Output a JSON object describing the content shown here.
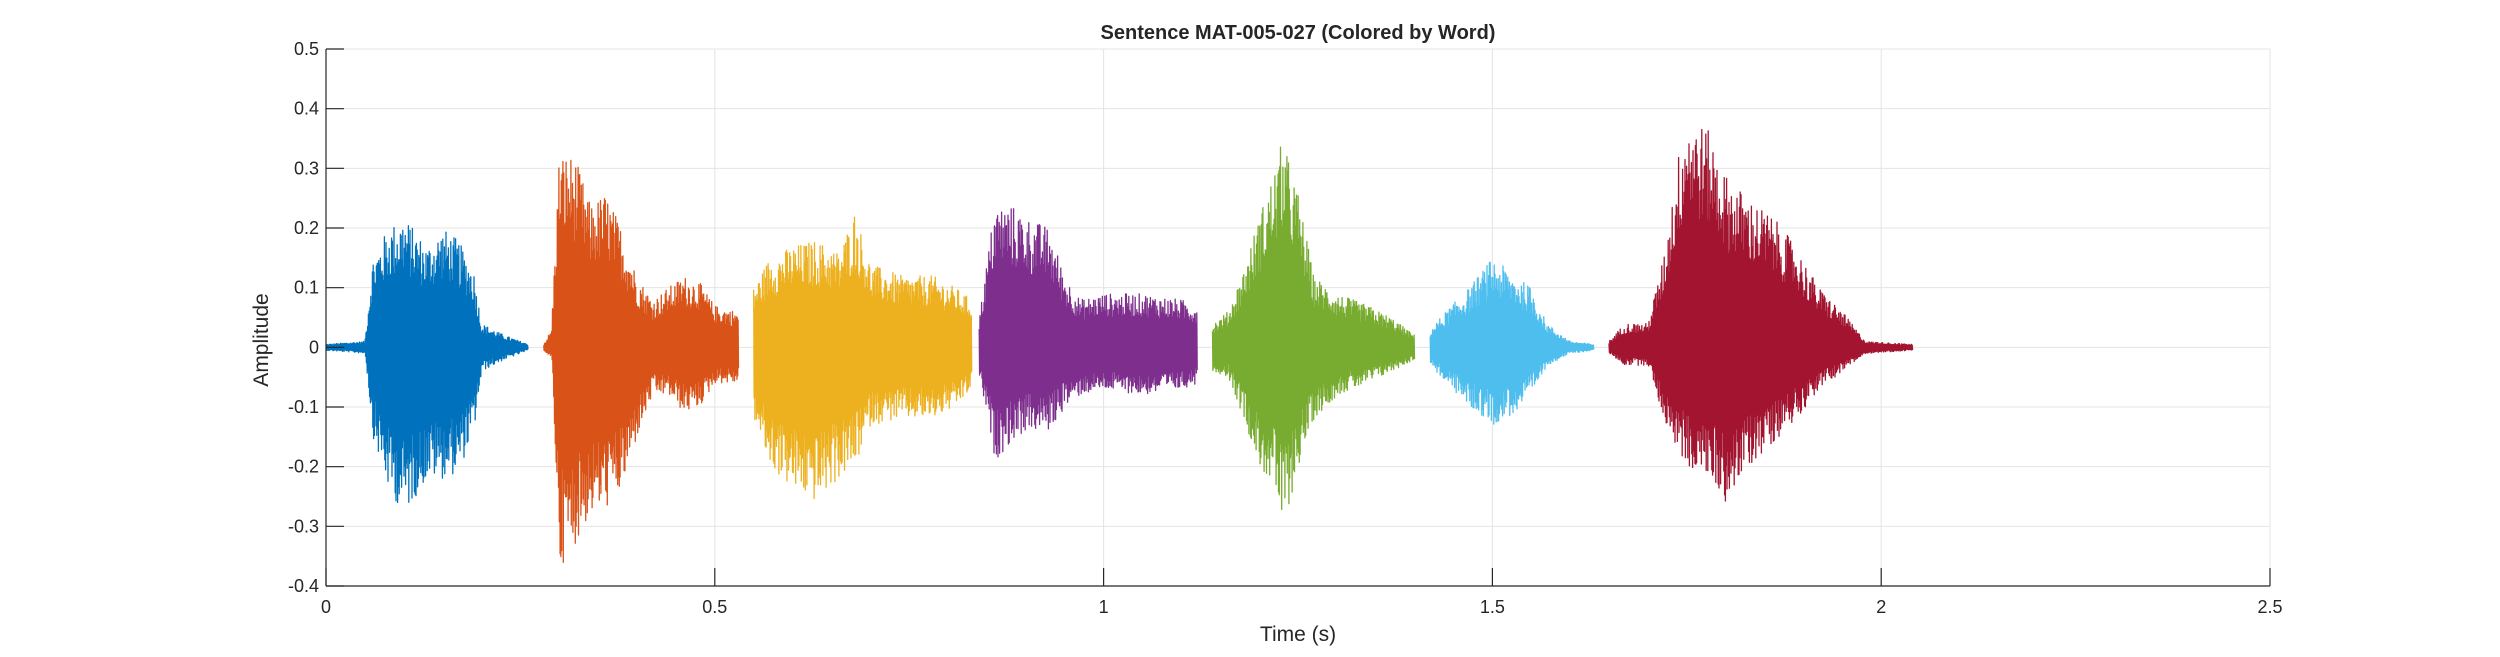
{
  "chart_data": {
    "type": "line",
    "title": "Sentence MAT-005-027 (Colored by Word)",
    "xlabel": "Time (s)",
    "ylabel": "Amplitude",
    "xlim": [
      0,
      2.5
    ],
    "ylim": [
      -0.4,
      0.5
    ],
    "xticks": [
      0,
      0.5,
      1,
      1.5,
      2,
      2.5
    ],
    "xtick_labels": [
      "0",
      "0.5",
      "1",
      "1.5",
      "2",
      "2.5"
    ],
    "yticks": [
      -0.4,
      -0.3,
      -0.2,
      -0.1,
      0,
      0.1,
      0.2,
      0.3,
      0.4,
      0.5
    ],
    "ytick_labels": [
      "-0.4",
      "-0.3",
      "-0.2",
      "-0.1",
      "0",
      "0.1",
      "0.2",
      "0.3",
      "0.4",
      "0.5"
    ],
    "grid": true,
    "series": [
      {
        "color": "#0072BD",
        "start": 0.0,
        "end": 0.26,
        "envelope": [
          {
            "t": 0.0,
            "max": 0.005,
            "min": -0.005
          },
          {
            "t": 0.05,
            "max": 0.01,
            "min": -0.01
          },
          {
            "t": 0.06,
            "max": 0.15,
            "min": -0.15
          },
          {
            "t": 0.08,
            "max": 0.2,
            "min": -0.24
          },
          {
            "t": 0.1,
            "max": 0.22,
            "min": -0.28
          },
          {
            "t": 0.13,
            "max": 0.17,
            "min": -0.22
          },
          {
            "t": 0.15,
            "max": 0.2,
            "min": -0.22
          },
          {
            "t": 0.17,
            "max": 0.18,
            "min": -0.21
          },
          {
            "t": 0.19,
            "max": 0.13,
            "min": -0.14
          },
          {
            "t": 0.2,
            "max": 0.04,
            "min": -0.04
          },
          {
            "t": 0.23,
            "max": 0.02,
            "min": -0.02
          },
          {
            "t": 0.26,
            "max": 0.005,
            "min": -0.005
          }
        ]
      },
      {
        "color": "#D95319",
        "start": 0.28,
        "end": 0.53,
        "envelope": [
          {
            "t": 0.28,
            "max": 0.005,
            "min": -0.005
          },
          {
            "t": 0.29,
            "max": 0.03,
            "min": -0.02
          },
          {
            "t": 0.3,
            "max": 0.33,
            "min": -0.37
          },
          {
            "t": 0.32,
            "max": 0.32,
            "min": -0.33
          },
          {
            "t": 0.34,
            "max": 0.24,
            "min": -0.28
          },
          {
            "t": 0.36,
            "max": 0.26,
            "min": -0.27
          },
          {
            "t": 0.38,
            "max": 0.2,
            "min": -0.24
          },
          {
            "t": 0.4,
            "max": 0.12,
            "min": -0.15
          },
          {
            "t": 0.42,
            "max": 0.08,
            "min": -0.08
          },
          {
            "t": 0.44,
            "max": 0.1,
            "min": -0.08
          },
          {
            "t": 0.46,
            "max": 0.12,
            "min": -0.11
          },
          {
            "t": 0.48,
            "max": 0.11,
            "min": -0.1
          },
          {
            "t": 0.5,
            "max": 0.07,
            "min": -0.06
          },
          {
            "t": 0.53,
            "max": 0.06,
            "min": -0.06
          }
        ]
      },
      {
        "color": "#EDB120",
        "start": 0.55,
        "end": 0.83,
        "envelope": [
          {
            "t": 0.55,
            "max": 0.1,
            "min": -0.12
          },
          {
            "t": 0.57,
            "max": 0.15,
            "min": -0.2
          },
          {
            "t": 0.6,
            "max": 0.17,
            "min": -0.24
          },
          {
            "t": 0.63,
            "max": 0.18,
            "min": -0.26
          },
          {
            "t": 0.66,
            "max": 0.16,
            "min": -0.22
          },
          {
            "t": 0.68,
            "max": 0.23,
            "min": -0.2
          },
          {
            "t": 0.7,
            "max": 0.14,
            "min": -0.13
          },
          {
            "t": 0.74,
            "max": 0.12,
            "min": -0.12
          },
          {
            "t": 0.78,
            "max": 0.12,
            "min": -0.12
          },
          {
            "t": 0.81,
            "max": 0.1,
            "min": -0.1
          },
          {
            "t": 0.83,
            "max": 0.08,
            "min": -0.07
          }
        ]
      },
      {
        "color": "#7E2F8E",
        "start": 0.84,
        "end": 1.12,
        "envelope": [
          {
            "t": 0.84,
            "max": 0.05,
            "min": -0.05
          },
          {
            "t": 0.86,
            "max": 0.24,
            "min": -0.19
          },
          {
            "t": 0.88,
            "max": 0.24,
            "min": -0.16
          },
          {
            "t": 0.9,
            "max": 0.22,
            "min": -0.14
          },
          {
            "t": 0.93,
            "max": 0.2,
            "min": -0.14
          },
          {
            "t": 0.95,
            "max": 0.12,
            "min": -0.1
          },
          {
            "t": 0.97,
            "max": 0.08,
            "min": -0.08
          },
          {
            "t": 1.0,
            "max": 0.09,
            "min": -0.07
          },
          {
            "t": 1.05,
            "max": 0.09,
            "min": -0.08
          },
          {
            "t": 1.1,
            "max": 0.08,
            "min": -0.07
          },
          {
            "t": 1.12,
            "max": 0.07,
            "min": -0.06
          }
        ]
      },
      {
        "color": "#77AC30",
        "start": 1.14,
        "end": 1.4,
        "envelope": [
          {
            "t": 1.14,
            "max": 0.04,
            "min": -0.04
          },
          {
            "t": 1.16,
            "max": 0.06,
            "min": -0.05
          },
          {
            "t": 1.18,
            "max": 0.13,
            "min": -0.12
          },
          {
            "t": 1.2,
            "max": 0.22,
            "min": -0.2
          },
          {
            "t": 1.22,
            "max": 0.3,
            "min": -0.24
          },
          {
            "t": 1.23,
            "max": 0.35,
            "min": -0.31
          },
          {
            "t": 1.25,
            "max": 0.26,
            "min": -0.2
          },
          {
            "t": 1.27,
            "max": 0.12,
            "min": -0.12
          },
          {
            "t": 1.3,
            "max": 0.09,
            "min": -0.08
          },
          {
            "t": 1.34,
            "max": 0.07,
            "min": -0.06
          },
          {
            "t": 1.37,
            "max": 0.05,
            "min": -0.04
          },
          {
            "t": 1.4,
            "max": 0.02,
            "min": -0.02
          }
        ]
      },
      {
        "color": "#4DBEEE",
        "start": 1.42,
        "end": 1.63,
        "envelope": [
          {
            "t": 1.42,
            "max": 0.03,
            "min": -0.03
          },
          {
            "t": 1.44,
            "max": 0.06,
            "min": -0.06
          },
          {
            "t": 1.47,
            "max": 0.1,
            "min": -0.1
          },
          {
            "t": 1.5,
            "max": 0.15,
            "min": -0.13
          },
          {
            "t": 1.53,
            "max": 0.12,
            "min": -0.11
          },
          {
            "t": 1.55,
            "max": 0.1,
            "min": -0.08
          },
          {
            "t": 1.57,
            "max": 0.04,
            "min": -0.03
          },
          {
            "t": 1.6,
            "max": 0.01,
            "min": -0.01
          },
          {
            "t": 1.63,
            "max": 0.005,
            "min": -0.005
          }
        ]
      },
      {
        "color": "#A2142F",
        "start": 1.65,
        "end": 2.04,
        "envelope": [
          {
            "t": 1.65,
            "max": 0.01,
            "min": -0.01
          },
          {
            "t": 1.67,
            "max": 0.04,
            "min": -0.03
          },
          {
            "t": 1.7,
            "max": 0.04,
            "min": -0.03
          },
          {
            "t": 1.72,
            "max": 0.15,
            "min": -0.12
          },
          {
            "t": 1.74,
            "max": 0.33,
            "min": -0.18
          },
          {
            "t": 1.75,
            "max": 0.4,
            "min": -0.2
          },
          {
            "t": 1.78,
            "max": 0.36,
            "min": -0.22
          },
          {
            "t": 1.8,
            "max": 0.29,
            "min": -0.26
          },
          {
            "t": 1.83,
            "max": 0.25,
            "min": -0.2
          },
          {
            "t": 1.86,
            "max": 0.22,
            "min": -0.16
          },
          {
            "t": 1.89,
            "max": 0.17,
            "min": -0.12
          },
          {
            "t": 1.92,
            "max": 0.1,
            "min": -0.07
          },
          {
            "t": 1.95,
            "max": 0.06,
            "min": -0.04
          },
          {
            "t": 1.98,
            "max": 0.01,
            "min": -0.01
          },
          {
            "t": 2.04,
            "max": 0.005,
            "min": -0.005
          }
        ]
      }
    ]
  }
}
